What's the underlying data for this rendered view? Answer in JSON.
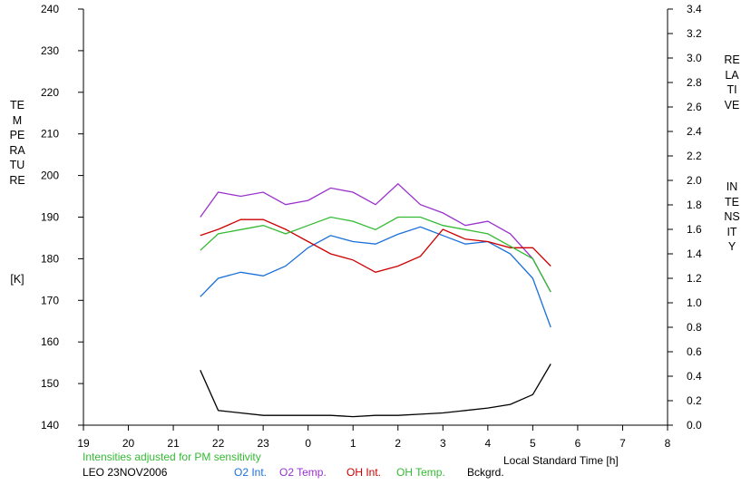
{
  "chart_data": {
    "type": "line",
    "xlabel": "Local Standard Time [h]",
    "x_tick_labels": [
      "19",
      "20",
      "21",
      "22",
      "23",
      "0",
      "1",
      "2",
      "3",
      "4",
      "5",
      "6",
      "7",
      "8"
    ],
    "ylabel_left_vertical": "TEMPERATURE",
    "ylabel_left_unit": "[K]",
    "ylim_left": [
      140,
      240
    ],
    "y_ticks_left": [
      140,
      150,
      160,
      170,
      180,
      190,
      200,
      210,
      220,
      230,
      240
    ],
    "ylabel_right_line1": "RELATIVE",
    "ylabel_right_line2": "INTENSITY",
    "ylim_right": [
      0.0,
      3.4
    ],
    "y_ticks_right": [
      "0.0",
      "0.2",
      "0.4",
      "0.6",
      "0.8",
      "1.0",
      "1.2",
      "1.4",
      "1.6",
      "1.8",
      "2.0",
      "2.2",
      "2.4",
      "2.6",
      "2.8",
      "3.0",
      "3.2",
      "3.4"
    ],
    "note": "Intensities adjusted for PM sensitivity",
    "station": "LEO 23NOV2006",
    "grid": false,
    "x_hours_after_19": [
      2.6,
      3.0,
      3.5,
      4.0,
      4.5,
      5.0,
      5.5,
      6.0,
      6.5,
      7.0,
      7.5,
      8.0,
      8.5,
      9.0,
      9.5,
      10.0,
      10.4
    ],
    "series": [
      {
        "name": "O2 Int.",
        "color": "#1a6fd9",
        "axis": "right",
        "values": [
          1.05,
          1.2,
          1.25,
          1.22,
          1.3,
          1.45,
          1.55,
          1.5,
          1.48,
          1.56,
          1.62,
          1.55,
          1.48,
          1.5,
          1.4,
          1.2,
          0.8
        ]
      },
      {
        "name": "O2 Temp.",
        "color": "#9933cc",
        "axis": "left",
        "values": [
          190,
          196,
          195,
          196,
          193,
          194,
          197,
          196,
          193,
          198,
          193,
          191,
          188,
          189,
          186,
          180,
          172
        ]
      },
      {
        "name": "OH Int.",
        "color": "#cc0000",
        "axis": "right",
        "values": [
          1.55,
          1.6,
          1.68,
          1.68,
          1.6,
          1.5,
          1.4,
          1.35,
          1.25,
          1.3,
          1.38,
          1.6,
          1.52,
          1.5,
          1.45,
          1.45,
          1.3
        ]
      },
      {
        "name": "OH Temp.",
        "color": "#33bb33",
        "axis": "left",
        "values": [
          182,
          186,
          187,
          188,
          186,
          188,
          190,
          189,
          187,
          190,
          190,
          188,
          187,
          186,
          183,
          180,
          172
        ]
      },
      {
        "name": "Bckgrd.",
        "color": "#000000",
        "axis": "right",
        "values": [
          0.45,
          0.12,
          0.1,
          0.08,
          0.08,
          0.08,
          0.08,
          0.07,
          0.08,
          0.08,
          0.09,
          0.1,
          0.12,
          0.14,
          0.17,
          0.25,
          0.5
        ]
      }
    ]
  }
}
